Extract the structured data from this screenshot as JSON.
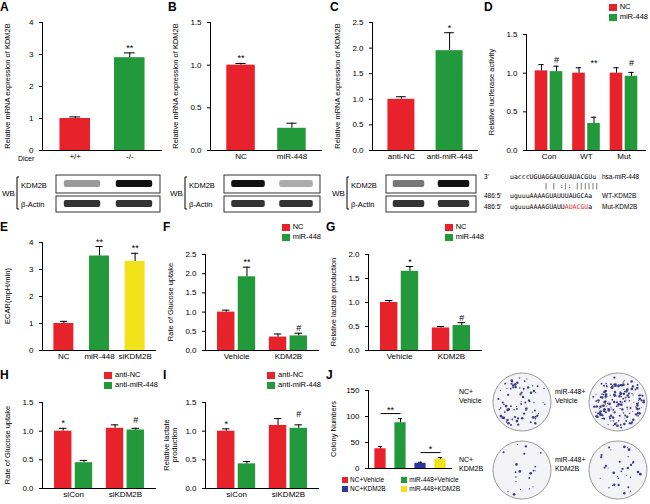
{
  "chart_data": [
    {
      "panel": "A",
      "type": "bar",
      "ylabel": "Relative mRNA expression of KDM2B",
      "xlabel": "Dicer",
      "categories": [
        "+/+",
        "-/-"
      ],
      "values": [
        1.0,
        2.9
      ],
      "errors": [
        0.05,
        0.15
      ],
      "significance": [
        null,
        "**"
      ],
      "colors": [
        "#e8222a",
        "#229a3c"
      ],
      "ylim": [
        0,
        4
      ],
      "yticks": [
        0,
        1,
        2,
        3,
        4
      ],
      "blot": {
        "method": "WB",
        "rows": [
          "KDM2B",
          "β-Actin"
        ]
      }
    },
    {
      "panel": "B",
      "type": "bar",
      "ylabel": "Relative mRNA expression of KDM2B",
      "categories": [
        "NC",
        "miR-448"
      ],
      "values": [
        1.0,
        0.26
      ],
      "errors": [
        0.02,
        0.06
      ],
      "significance": [
        "**",
        null
      ],
      "colors": [
        "#e8222a",
        "#229a3c"
      ],
      "ylim": [
        0,
        1.5
      ],
      "yticks": [
        {
          "value": 0,
          "label": "0.0"
        },
        0.5,
        {
          "value": 1,
          "label": "1.0"
        },
        1.5
      ],
      "blot": {
        "method": "WB",
        "rows": [
          "KDM2B",
          "β-Actin"
        ]
      }
    },
    {
      "panel": "C",
      "type": "bar",
      "ylabel": "Relative mRNA expression of KDM2B",
      "categories": [
        "anti-NC",
        "anti-miR-448"
      ],
      "values": [
        1.0,
        1.95
      ],
      "errors": [
        0.05,
        0.35
      ],
      "significance": [
        null,
        "*"
      ],
      "colors": [
        "#e8222a",
        "#229a3c"
      ],
      "ylim": [
        0,
        2.5
      ],
      "yticks": [
        {
          "value": 0,
          "label": "0.0"
        },
        0.5,
        {
          "value": 1,
          "label": "1.0"
        },
        1.5,
        {
          "value": 2,
          "label": "2.0"
        },
        2.5
      ],
      "blot": {
        "method": "WB",
        "rows": [
          "KDM2B",
          "β-Actin"
        ]
      }
    },
    {
      "panel": "D",
      "type": "bar",
      "ylabel": "Relative luciferase activity",
      "legend": "top-right",
      "categories": [
        "Con",
        "WT",
        "Mut"
      ],
      "series": [
        {
          "name": "NC",
          "color": "#e8222a",
          "values": [
            1.03,
            1.0,
            1.0
          ],
          "errors": [
            0.08,
            0.07,
            0.07
          ],
          "significance": [
            null,
            null,
            null
          ]
        },
        {
          "name": "miR-448",
          "color": "#229a3c",
          "values": [
            1.02,
            0.35,
            0.96
          ],
          "errors": [
            0.07,
            0.08,
            0.05
          ],
          "significance": [
            "#",
            "**",
            "#"
          ]
        }
      ],
      "ylim": [
        0,
        1.5
      ],
      "yticks": [
        {
          "value": 0,
          "label": "0.0"
        },
        0.5,
        {
          "value": 1,
          "label": "1.0"
        },
        1.5
      ],
      "alignment": [
        {
          "prefix": "3'",
          "seq": [
            {
              "text": "uacccUGUAGGAUGUAUACGUu"
            }
          ],
          "name": "hsa-miR-448"
        },
        {
          "pairs": "|   |  :|:  ||||||"
        },
        {
          "prefix": "486:5'",
          "seq": [
            {
              "text": "uguuuAAAAGUAUUUAUGCAa"
            }
          ],
          "name": "WT-KDM2B"
        },
        {
          "prefix": "486:5'",
          "seq": [
            {
              "text": "uguuuAAAAGUAUU"
            },
            {
              "text": "AUACGU",
              "color": "#e8222a"
            },
            {
              "text": "a"
            }
          ],
          "name": "Mut-KDM2B"
        }
      ]
    },
    {
      "panel": "E",
      "type": "bar",
      "ylabel": "ECAR(mpH/min)",
      "categories": [
        "NC",
        "miR-448",
        "siKDM2B"
      ],
      "values": [
        1.0,
        3.5,
        3.3
      ],
      "errors": [
        0.08,
        0.35,
        0.3
      ],
      "significance": [
        null,
        "**",
        "**"
      ],
      "colors": [
        "#e8222a",
        "#229a3c",
        "#f2e21c"
      ],
      "ylim": [
        0,
        4
      ],
      "yticks": [
        0,
        1,
        2,
        3,
        4
      ]
    },
    {
      "panel": "F",
      "type": "bar",
      "ylabel": "Rate of Glucose uptake",
      "legend": "top-right",
      "categories": [
        "Vehicle",
        "KDM2B"
      ],
      "series": [
        {
          "name": "NC",
          "color": "#e8222a",
          "values": [
            1.0,
            0.35
          ],
          "errors": [
            0.05,
            0.08
          ],
          "significance": [
            null,
            null
          ]
        },
        {
          "name": "miR-448",
          "color": "#229a3c",
          "values": [
            1.92,
            0.38
          ],
          "errors": [
            0.25,
            0.07
          ],
          "significance": [
            "**",
            "#"
          ]
        }
      ],
      "ylim": [
        0,
        2.5
      ],
      "yticks": [
        {
          "value": 0,
          "label": "0.0"
        },
        0.5,
        {
          "value": 1,
          "label": "1.0"
        },
        1.5,
        {
          "value": 2,
          "label": "2.0"
        },
        2.5
      ]
    },
    {
      "panel": "G",
      "type": "bar",
      "ylabel": "Relative lactate production",
      "legend": "top-right",
      "categories": [
        "Vehicle",
        "KDM2B"
      ],
      "series": [
        {
          "name": "NC",
          "color": "#e8222a",
          "values": [
            1.0,
            0.47
          ],
          "errors": [
            0.04,
            0.03
          ],
          "significance": [
            null,
            null
          ]
        },
        {
          "name": "miR-448",
          "color": "#229a3c",
          "values": [
            1.65,
            0.52
          ],
          "errors": [
            0.1,
            0.06
          ],
          "significance": [
            "*",
            "#"
          ]
        }
      ],
      "ylim": [
        0,
        2
      ],
      "yticks": [
        {
          "value": 0,
          "label": "0.0"
        },
        0.5,
        {
          "value": 1,
          "label": "1.0"
        },
        1.5,
        {
          "value": 2,
          "label": "2.0"
        }
      ]
    },
    {
      "panel": "H",
      "type": "bar",
      "ylabel": "Rate of Glucose uptake",
      "legend": "top-right",
      "categories": [
        "siCon",
        "siKDM2B"
      ],
      "series": [
        {
          "name": "anti-NC",
          "color": "#e8222a",
          "values": [
            1.0,
            1.05
          ],
          "errors": [
            0.05,
            0.06
          ],
          "significance": [
            "*",
            null
          ]
        },
        {
          "name": "anti-miR-448",
          "color": "#229a3c",
          "values": [
            0.45,
            1.02
          ],
          "errors": [
            0.04,
            0.03
          ],
          "significance": [
            null,
            "#"
          ]
        }
      ],
      "ylim": [
        0,
        1.5
      ],
      "yticks": [
        {
          "value": 0,
          "label": "0.0"
        },
        0.5,
        {
          "value": 1,
          "label": "1.0"
        },
        1.5
      ]
    },
    {
      "panel": "I",
      "type": "bar",
      "ylabel": "Relative lactate production",
      "legend": "top-right",
      "categories": [
        "siCon",
        "siKDM2B"
      ],
      "series": [
        {
          "name": "anti-NC",
          "color": "#e8222a",
          "values": [
            1.0,
            1.1
          ],
          "errors": [
            0.04,
            0.12
          ],
          "significance": [
            "*",
            null
          ]
        },
        {
          "name": "anti-miR-448",
          "color": "#229a3c",
          "values": [
            0.43,
            1.05
          ],
          "errors": [
            0.04,
            0.06
          ],
          "significance": [
            null,
            "#"
          ]
        }
      ],
      "ylim": [
        0,
        1.5
      ],
      "yticks": [
        {
          "value": 0,
          "label": "0.0"
        },
        0.5,
        {
          "value": 1,
          "label": "1.0"
        },
        1.5
      ]
    },
    {
      "panel": "J",
      "type": "bar",
      "ylabel": "Colony Numbers",
      "tick_labels": "y",
      "categories": [
        "NC+Vehicle",
        "miR-448+Vehicle",
        "NC+KDM2B",
        "miR-448+KDM2B"
      ],
      "values": [
        38,
        88,
        10,
        18
      ],
      "errors": [
        4,
        8,
        2,
        3
      ],
      "colors": [
        "#e8222a",
        "#229a3c",
        "#2a3a9c",
        "#f2e21c"
      ],
      "ylim": [
        0,
        150
      ],
      "yticks": [
        0,
        50,
        100,
        150
      ],
      "comparisons": [
        {
          "between": [
            0,
            1
          ],
          "label": "**"
        },
        {
          "between": [
            2,
            3
          ],
          "label": "*"
        }
      ],
      "plates": [
        [
          "NC+",
          "Vehicle"
        ],
        [
          "miR-448+",
          "Vehicle"
        ],
        [
          "NC+",
          "KDM2B"
        ],
        [
          "miR-448+",
          "KDM2B"
        ]
      ]
    }
  ]
}
